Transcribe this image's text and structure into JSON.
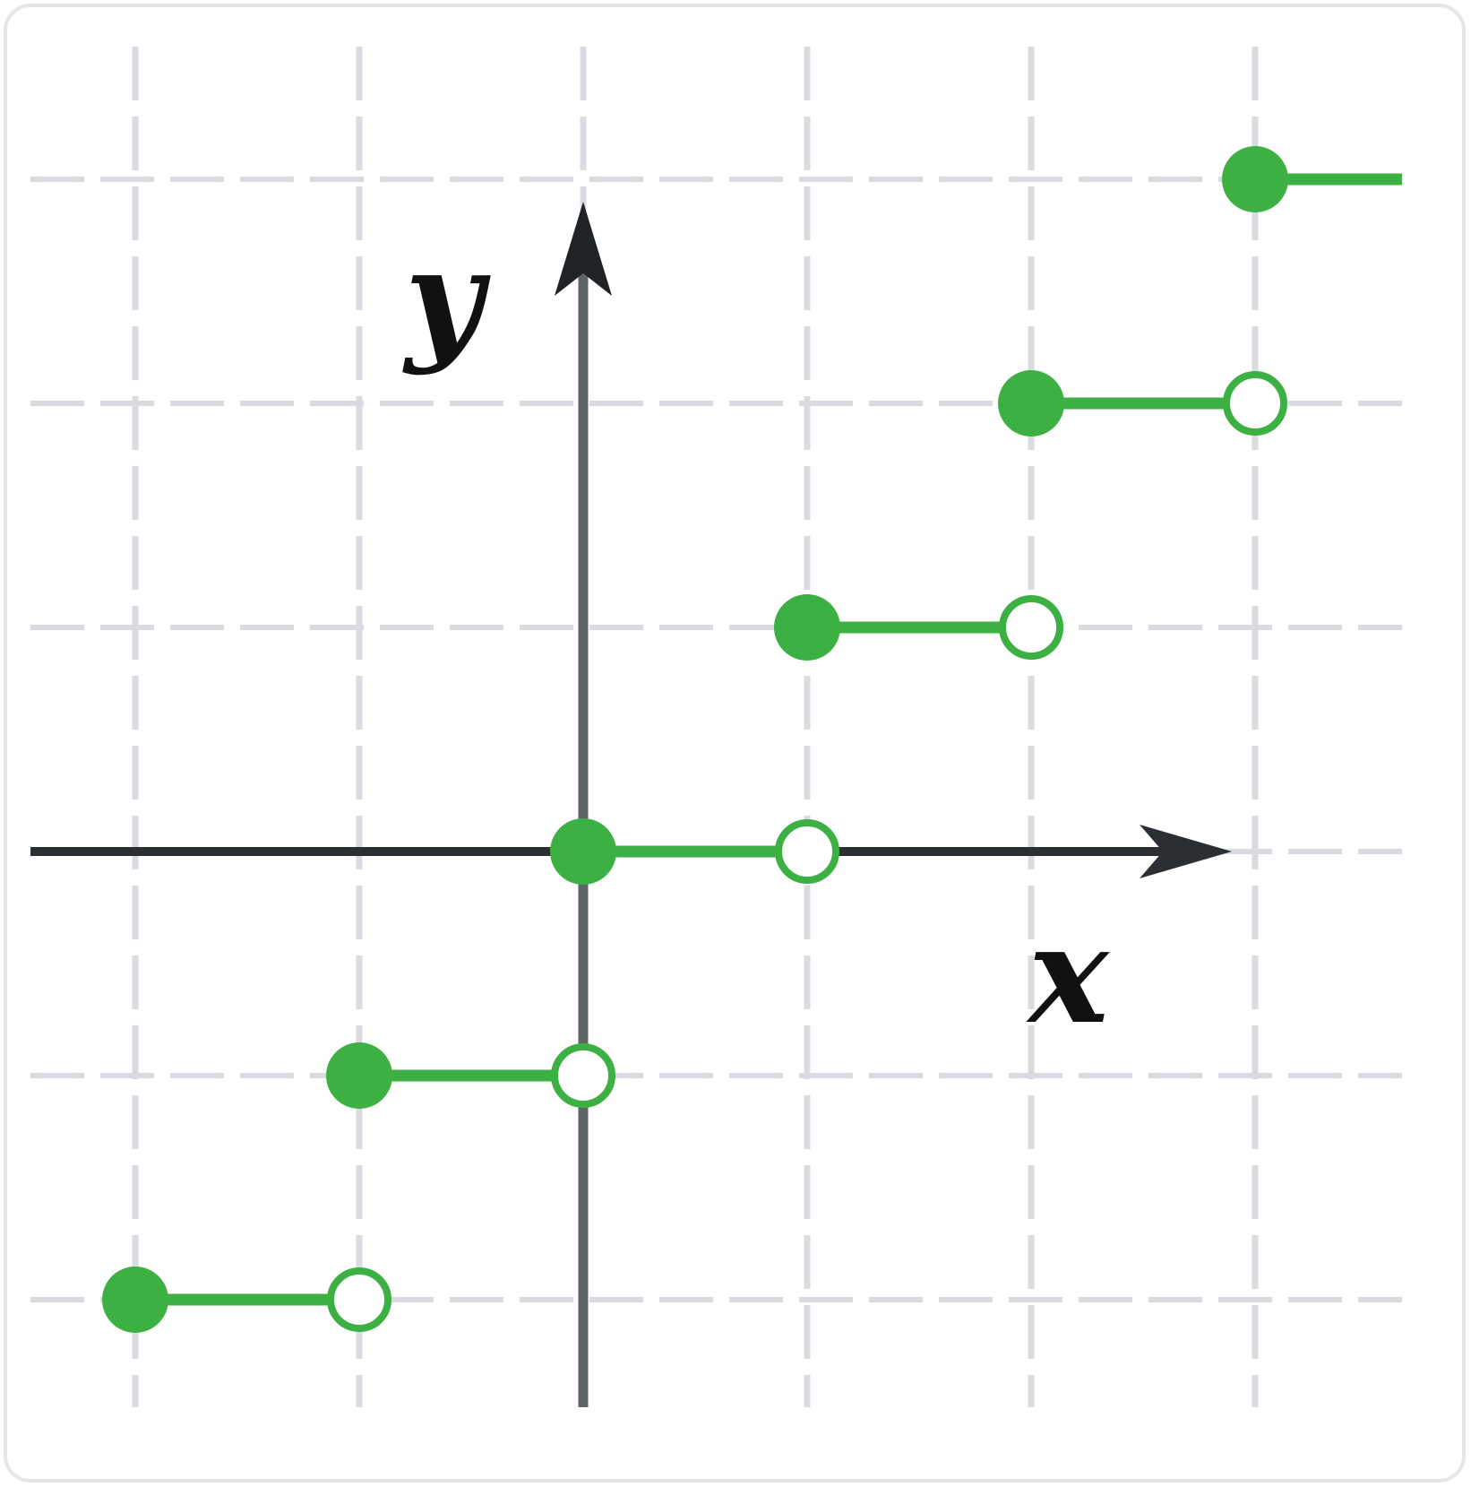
{
  "chart_data": {
    "type": "line",
    "title": "",
    "xlabel": "x",
    "ylabel": "y",
    "xlim": [
      -2,
      4
    ],
    "ylim": [
      -2,
      3
    ],
    "grid": true,
    "series": [
      {
        "style": "step",
        "color": "#3cb043",
        "segments": [
          {
            "x_start": -2,
            "x_end": -1,
            "y": -2,
            "start_closed": true,
            "end_closed": false
          },
          {
            "x_start": -1,
            "x_end": 0,
            "y": -1,
            "start_closed": true,
            "end_closed": false
          },
          {
            "x_start": 0,
            "x_end": 1,
            "y": 0,
            "start_closed": true,
            "end_closed": false
          },
          {
            "x_start": 1,
            "x_end": 2,
            "y": 1,
            "start_closed": true,
            "end_closed": false
          },
          {
            "x_start": 2,
            "x_end": 3,
            "y": 2,
            "start_closed": true,
            "end_closed": false
          },
          {
            "x_start": 3,
            "x_end": null,
            "y": 3,
            "start_closed": true,
            "end_closed": null
          }
        ]
      }
    ]
  },
  "colors": {
    "grid": "#d9dbe0",
    "axis_x": "#2b2f33",
    "axis_y": "#5f6466",
    "series": "#3cb043"
  }
}
